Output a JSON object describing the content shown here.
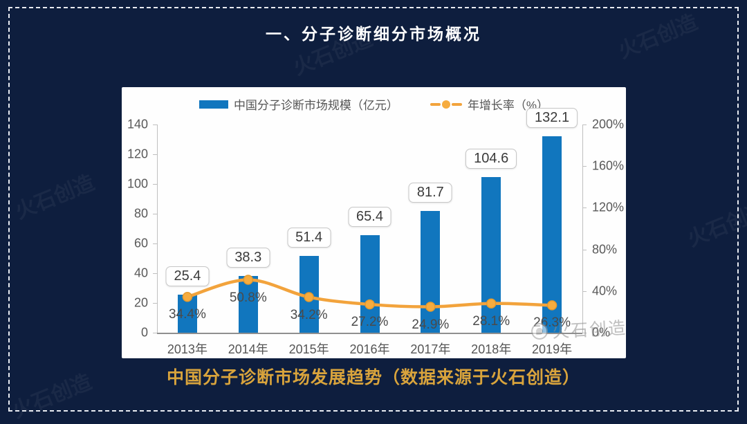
{
  "page": {
    "title": "一、分子诊断细分市场概况",
    "caption": "中国分子诊断市场发展趋势（数据来源于火石创造）",
    "watermark_text": "火石创造",
    "colors": {
      "background": "#0e1e3e",
      "bar": "#1176be",
      "line": "#f2a33c",
      "caption_gold": "#d9a43c",
      "axis_text": "#595959"
    }
  },
  "chart_data": {
    "type": "bar",
    "subtype": "bar-line-combo",
    "categories": [
      "2013年",
      "2014年",
      "2015年",
      "2016年",
      "2017年",
      "2018年",
      "2019年"
    ],
    "series": [
      {
        "name": "中国分子诊断市场规模（亿元）",
        "type": "bar",
        "axis": "left",
        "values": [
          25.4,
          38.3,
          51.4,
          65.4,
          81.7,
          104.6,
          132.1
        ],
        "labels": [
          "25.4",
          "38.3",
          "51.4",
          "65.4",
          "81.7",
          "104.6",
          "132.1"
        ]
      },
      {
        "name": "年增长率（%）",
        "type": "line",
        "axis": "right",
        "values": [
          34.4,
          50.8,
          34.2,
          27.2,
          24.9,
          28.1,
          26.3
        ],
        "labels": [
          "34.4%",
          "50.8%",
          "34.2%",
          "27.2%",
          "24.9%",
          "28.1%",
          "26.3%"
        ]
      }
    ],
    "left_axis": {
      "min": 0,
      "max": 140,
      "ticks": [
        140,
        120,
        100,
        80,
        60,
        40,
        20,
        0
      ]
    },
    "right_axis": {
      "min": 0,
      "max": 200,
      "ticks": [
        200,
        160,
        120,
        80,
        40,
        0
      ],
      "tick_labels": [
        "200%",
        "160%",
        "120%",
        "80%",
        "40%",
        "0%"
      ]
    },
    "legend_position": "top",
    "grid": false
  }
}
